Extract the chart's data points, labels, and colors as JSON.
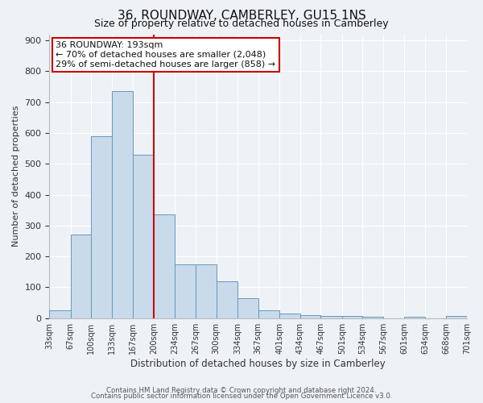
{
  "title": "36, ROUNDWAY, CAMBERLEY, GU15 1NS",
  "subtitle": "Size of property relative to detached houses in Camberley",
  "xlabel": "Distribution of detached houses by size in Camberley",
  "ylabel": "Number of detached properties",
  "bar_color": "#c9daea",
  "bar_edge_color": "#6699bb",
  "background_color": "#eef2f7",
  "grid_color": "#ffffff",
  "vline_x": 200,
  "vline_color": "#cc0000",
  "bin_edges": [
    33,
    67,
    100,
    133,
    167,
    200,
    234,
    267,
    300,
    334,
    367,
    401,
    434,
    467,
    501,
    534,
    567,
    601,
    634,
    668,
    701
  ],
  "bin_labels": [
    "33sqm",
    "67sqm",
    "100sqm",
    "133sqm",
    "167sqm",
    "200sqm",
    "234sqm",
    "267sqm",
    "300sqm",
    "334sqm",
    "367sqm",
    "401sqm",
    "434sqm",
    "467sqm",
    "501sqm",
    "534sqm",
    "567sqm",
    "601sqm",
    "634sqm",
    "668sqm",
    "701sqm"
  ],
  "counts": [
    25,
    270,
    590,
    735,
    530,
    335,
    175,
    175,
    120,
    65,
    25,
    15,
    10,
    8,
    6,
    5,
    0,
    5,
    0,
    6
  ],
  "ylim": [
    0,
    920
  ],
  "yticks": [
    0,
    100,
    200,
    300,
    400,
    500,
    600,
    700,
    800,
    900
  ],
  "ann_line1": "36 ROUNDWAY: 193sqm",
  "ann_line2": "← 70% of detached houses are smaller (2,048)",
  "ann_line3": "29% of semi-detached houses are larger (858) →",
  "footer1": "Contains HM Land Registry data © Crown copyright and database right 2024.",
  "footer2": "Contains public sector information licensed under the Open Government Licence v3.0."
}
